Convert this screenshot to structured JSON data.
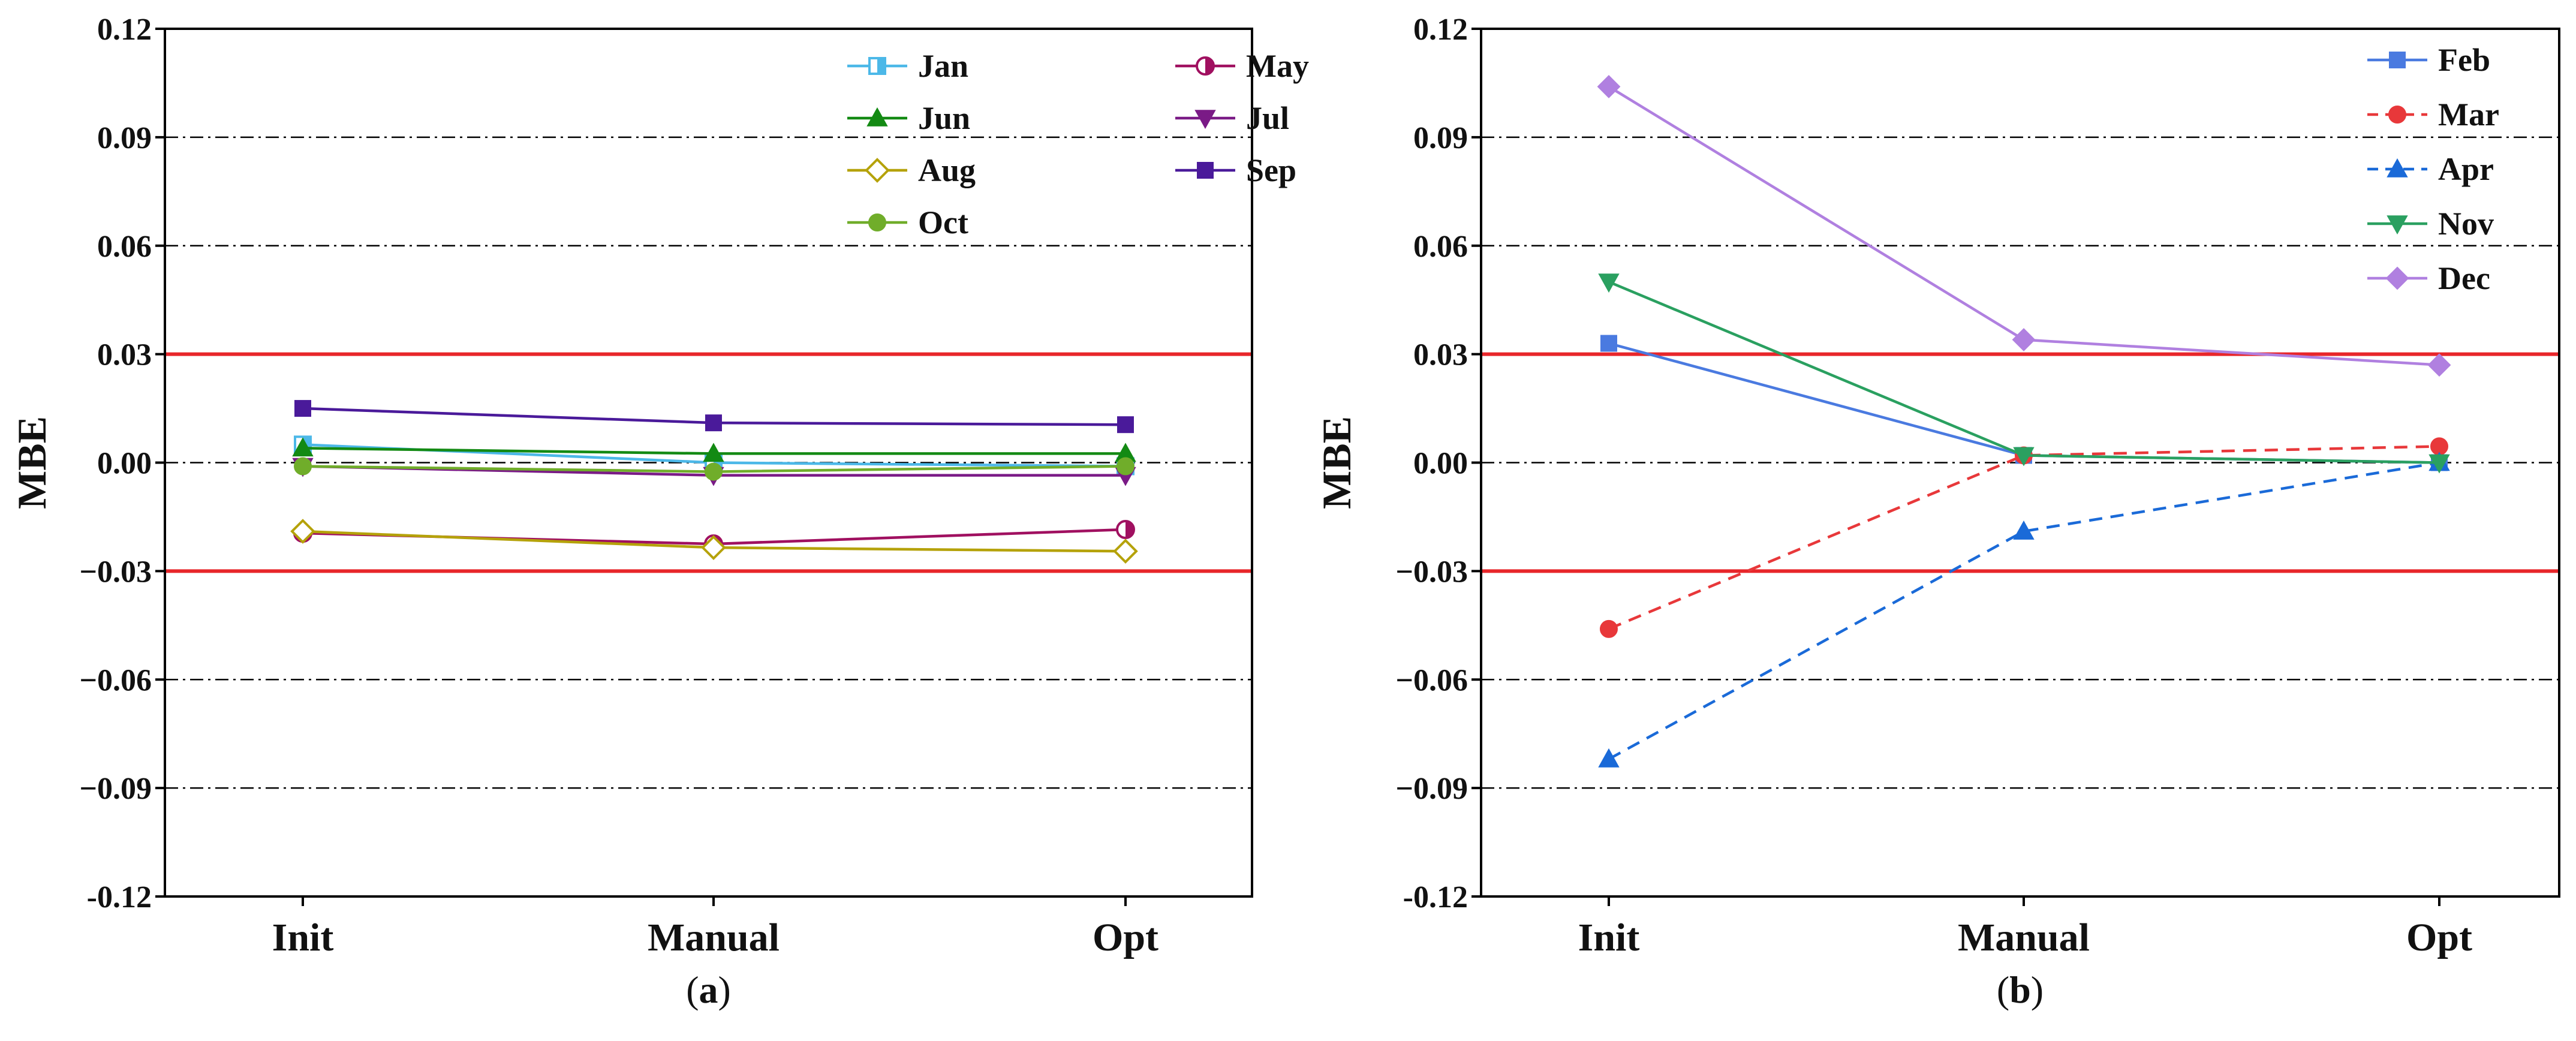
{
  "chart_data": [
    {
      "type": "line",
      "panel_label": "(a)",
      "panel_letter": "a",
      "ylabel": "MBE",
      "xlabel": "",
      "categories": [
        "Init",
        "Manual",
        "Opt"
      ],
      "ylim": [
        -0.12,
        0.12
      ],
      "yticks": [
        0.12,
        0.09,
        0.06,
        0.03,
        0.0,
        -0.03,
        -0.06,
        -0.09,
        -0.12
      ],
      "ytick_labels": [
        "0.12",
        "0.09",
        "0.06",
        "0.03",
        "0.00",
        "−0.03",
        "−0.06",
        "−0.09",
        "-0.12"
      ],
      "grid": "dash-dot at 0.09, 0.06, 0.00, -0.06, -0.09",
      "threshold_lines": [
        0.03,
        -0.03
      ],
      "threshold_color": "#e8262a",
      "legend_position": "top-right",
      "series": [
        {
          "name": "Jan",
          "values": [
            0.005,
            0.0,
            -0.001
          ],
          "color": "#4cb8e8",
          "marker": "half-square",
          "dash": "solid"
        },
        {
          "name": "May",
          "values": [
            -0.0195,
            -0.0225,
            -0.0185
          ],
          "color": "#a01060",
          "marker": "half-circle",
          "dash": "solid"
        },
        {
          "name": "Jun",
          "values": [
            0.004,
            0.0025,
            0.0025
          ],
          "color": "#138a13",
          "marker": "triangle-up",
          "dash": "solid"
        },
        {
          "name": "Jul",
          "values": [
            -0.001,
            -0.0035,
            -0.0035
          ],
          "color": "#7a1a86",
          "marker": "triangle-down",
          "dash": "solid"
        },
        {
          "name": "Aug",
          "values": [
            -0.019,
            -0.0235,
            -0.0245
          ],
          "color": "#b5a20a",
          "marker": "open-diamond",
          "dash": "solid"
        },
        {
          "name": "Sep",
          "values": [
            0.015,
            0.011,
            0.0105
          ],
          "color": "#4a1a9a",
          "marker": "square",
          "dash": "solid"
        },
        {
          "name": "Oct",
          "values": [
            -0.001,
            -0.0025,
            -0.001
          ],
          "color": "#70ad2a",
          "marker": "circle",
          "dash": "solid"
        }
      ]
    },
    {
      "type": "line",
      "panel_label": "(b)",
      "panel_letter": "b",
      "ylabel": "MBE",
      "xlabel": "",
      "categories": [
        "Init",
        "Manual",
        "Opt"
      ],
      "ylim": [
        -0.12,
        0.12
      ],
      "yticks": [
        0.12,
        0.09,
        0.06,
        0.03,
        0.0,
        -0.03,
        -0.06,
        -0.09,
        -0.12
      ],
      "ytick_labels": [
        "0.12",
        "0.09",
        "0.06",
        "0.03",
        "0.00",
        "−0.03",
        "−0.06",
        "−0.09",
        "-0.12"
      ],
      "grid": "dash-dot at 0.09, 0.06, 0.00, -0.06, -0.09",
      "threshold_lines": [
        0.03,
        -0.03
      ],
      "threshold_color": "#e8262a",
      "legend_position": "top-right",
      "series": [
        {
          "name": "Feb",
          "values": [
            0.033,
            0.002,
            0.0
          ],
          "color": "#4a7ae0",
          "marker": "square",
          "dash": "solid"
        },
        {
          "name": "Mar",
          "values": [
            -0.046,
            0.002,
            0.0045
          ],
          "color": "#e8383a",
          "marker": "circle",
          "dash": "dashed"
        },
        {
          "name": "Apr",
          "values": [
            -0.082,
            -0.019,
            0.0
          ],
          "color": "#1a6ad8",
          "marker": "triangle-up",
          "dash": "dashed"
        },
        {
          "name": "Nov",
          "values": [
            0.05,
            0.002,
            0.0
          ],
          "color": "#2aa060",
          "marker": "triangle-down",
          "dash": "solid"
        },
        {
          "name": "Dec",
          "values": [
            0.104,
            0.034,
            0.027
          ],
          "color": "#b080e0",
          "marker": "diamond",
          "dash": "solid"
        }
      ]
    }
  ]
}
